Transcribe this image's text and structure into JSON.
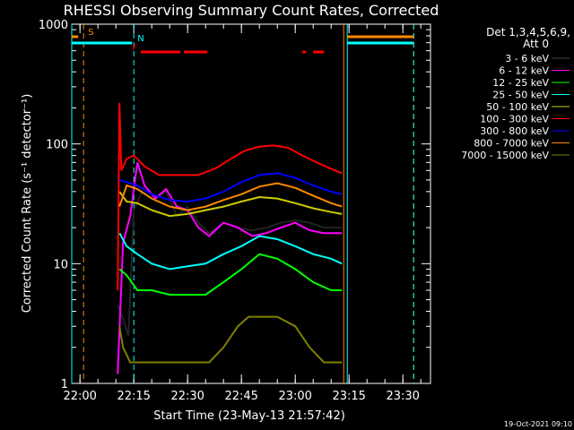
{
  "chart_data": {
    "type": "line",
    "title": "RHESSI Observing Summary Count Rates, Corrected",
    "xlabel": "Start Time (23-May-13 21:57:42)",
    "ylabel": "Corrected Count Rate (s⁻¹ detector⁻¹)",
    "yscale": "log",
    "xlim": [
      "21:57:42",
      "23:37:42"
    ],
    "ylim": [
      1,
      1000
    ],
    "x_ticks": [
      "22:00",
      "22:15",
      "22:30",
      "22:45",
      "23:00",
      "23:15",
      "23:30"
    ],
    "y_ticks": [
      "1",
      "10",
      "100",
      "1000"
    ],
    "legend_header": [
      "Det 1,3,4,5,6,9,",
      "Att 0"
    ],
    "legend_position": "right",
    "timestamp": "19-Oct-2021 09:10",
    "colors": {
      "axes": "#ffffff",
      "saa": "#ff8800",
      "night": "#00ffff",
      "flare": "#ff0000"
    },
    "flag_bars": [
      {
        "label": "S",
        "color": "#ff8800",
        "segments": [
          [
            "21:57:42",
            "21:59:30"
          ],
          [
            "23:14:30",
            "23:33:00"
          ]
        ]
      },
      {
        "label": "N",
        "color": "#00ffff",
        "segments": [
          [
            "21:57:42",
            "22:14:30"
          ],
          [
            "23:14:30",
            "23:33:00"
          ]
        ]
      },
      {
        "label": "F",
        "color": "#ff0000",
        "segments": [
          [
            "22:17:00",
            "22:28:00"
          ],
          [
            "22:29:00",
            "22:35:30"
          ],
          [
            "23:02:00",
            "23:03:00"
          ],
          [
            "23:05:00",
            "23:08:00"
          ]
        ]
      }
    ],
    "vertical_markers": [
      {
        "time": "21:57:42",
        "color": "#00ffff",
        "style": "solid"
      },
      {
        "time": "22:01:00",
        "color": "#ff8800",
        "style": "dashed"
      },
      {
        "time": "22:15:00",
        "color": "#00ffff",
        "style": "dashed"
      },
      {
        "time": "23:13:30",
        "color": "#ff8800",
        "style": "solid"
      },
      {
        "time": "23:14:30",
        "color": "#00ffff",
        "style": "solid"
      },
      {
        "time": "23:33:00",
        "color": "#ff8800",
        "style": "dashed"
      },
      {
        "time": "23:33:00",
        "color": "#00ffff",
        "style": "dashed"
      }
    ],
    "series": [
      {
        "name": "3 - 6 keV",
        "color": "#000000",
        "points": [
          [
            "22:10:30",
            4.5
          ],
          [
            "22:12:00",
            3.5
          ],
          [
            "22:13:30",
            2.5
          ],
          [
            "22:15:00",
            28
          ],
          [
            "22:18:00",
            45
          ],
          [
            "22:21:00",
            35
          ],
          [
            "22:24:00",
            40
          ],
          [
            "22:27:00",
            25
          ],
          [
            "22:30:00",
            30
          ],
          [
            "22:33:00",
            22
          ],
          [
            "22:36:00",
            18
          ],
          [
            "22:40:00",
            22
          ],
          [
            "22:44:00",
            20
          ],
          [
            "22:48:00",
            19
          ],
          [
            "22:52:00",
            20
          ],
          [
            "22:56:00",
            22
          ],
          [
            "23:00:00",
            23
          ],
          [
            "23:04:00",
            22
          ],
          [
            "23:08:00",
            20
          ],
          [
            "23:13:00",
            20
          ]
        ]
      },
      {
        "name": "6 - 12 keV",
        "color": "#ff00ff",
        "points": [
          [
            "22:10:30",
            1.2
          ],
          [
            "22:12:00",
            15
          ],
          [
            "22:14:00",
            25
          ],
          [
            "22:16:00",
            70
          ],
          [
            "22:18:00",
            45
          ],
          [
            "22:21:00",
            35
          ],
          [
            "22:24:00",
            42
          ],
          [
            "22:27:00",
            30
          ],
          [
            "22:30:00",
            28
          ],
          [
            "22:33:00",
            20
          ],
          [
            "22:36:00",
            17
          ],
          [
            "22:40:00",
            22
          ],
          [
            "22:44:00",
            20
          ],
          [
            "22:48:00",
            17
          ],
          [
            "22:52:00",
            18
          ],
          [
            "22:56:00",
            20
          ],
          [
            "23:00:00",
            22
          ],
          [
            "23:04:00",
            19
          ],
          [
            "23:08:00",
            18
          ],
          [
            "23:13:00",
            18
          ]
        ]
      },
      {
        "name": "12 - 25 keV",
        "color": "#00ff00",
        "points": [
          [
            "22:11:00",
            9
          ],
          [
            "22:13:00",
            8
          ],
          [
            "22:16:00",
            6
          ],
          [
            "22:20:00",
            6
          ],
          [
            "22:25:00",
            5.5
          ],
          [
            "22:30:00",
            5.5
          ],
          [
            "22:35:00",
            5.5
          ],
          [
            "22:40:00",
            7
          ],
          [
            "22:45:00",
            9
          ],
          [
            "22:50:00",
            12
          ],
          [
            "22:55:00",
            11
          ],
          [
            "23:00:00",
            9
          ],
          [
            "23:05:00",
            7
          ],
          [
            "23:10:00",
            6
          ],
          [
            "23:13:00",
            6
          ]
        ]
      },
      {
        "name": "25 - 50 keV",
        "color": "#00ffff",
        "points": [
          [
            "22:11:00",
            18
          ],
          [
            "22:13:00",
            14
          ],
          [
            "22:16:00",
            12
          ],
          [
            "22:20:00",
            10
          ],
          [
            "22:25:00",
            9
          ],
          [
            "22:30:00",
            9.5
          ],
          [
            "22:35:00",
            10
          ],
          [
            "22:40:00",
            12
          ],
          [
            "22:45:00",
            14
          ],
          [
            "22:50:00",
            17
          ],
          [
            "22:55:00",
            16
          ],
          [
            "23:00:00",
            14
          ],
          [
            "23:05:00",
            12
          ],
          [
            "23:10:00",
            11
          ],
          [
            "23:13:00",
            10
          ]
        ]
      },
      {
        "name": "50 - 100 keV",
        "color": "#cccc00",
        "points": [
          [
            "22:11:00",
            40
          ],
          [
            "22:13:00",
            33
          ],
          [
            "22:16:00",
            32
          ],
          [
            "22:20:00",
            28
          ],
          [
            "22:25:00",
            25
          ],
          [
            "22:30:00",
            26
          ],
          [
            "22:35:00",
            28
          ],
          [
            "22:40:00",
            30
          ],
          [
            "22:45:00",
            33
          ],
          [
            "22:50:00",
            36
          ],
          [
            "22:55:00",
            35
          ],
          [
            "23:00:00",
            32
          ],
          [
            "23:05:00",
            29
          ],
          [
            "23:10:00",
            27
          ],
          [
            "23:13:00",
            26
          ]
        ]
      },
      {
        "name": "100 - 300 keV",
        "color": "#ff0000",
        "points": [
          [
            "22:10:30",
            6
          ],
          [
            "22:11:00",
            220
          ],
          [
            "22:11:30",
            60
          ],
          [
            "22:13:00",
            75
          ],
          [
            "22:15:00",
            80
          ],
          [
            "22:18:00",
            65
          ],
          [
            "22:22:00",
            55
          ],
          [
            "22:28:00",
            55
          ],
          [
            "22:33:00",
            55
          ],
          [
            "22:38:00",
            63
          ],
          [
            "22:42:00",
            75
          ],
          [
            "22:46:00",
            88
          ],
          [
            "22:50:00",
            95
          ],
          [
            "22:54:00",
            97
          ],
          [
            "22:58:00",
            93
          ],
          [
            "23:02:00",
            80
          ],
          [
            "23:06:00",
            70
          ],
          [
            "23:10:00",
            62
          ],
          [
            "23:13:00",
            57
          ]
        ]
      },
      {
        "name": "300 - 800 keV",
        "color": "#0000ff",
        "points": [
          [
            "22:11:00",
            50
          ],
          [
            "22:13:00",
            48
          ],
          [
            "22:16:00",
            45
          ],
          [
            "22:20:00",
            38
          ],
          [
            "22:25:00",
            34
          ],
          [
            "22:30:00",
            33
          ],
          [
            "22:35:00",
            35
          ],
          [
            "22:40:00",
            40
          ],
          [
            "22:45:00",
            48
          ],
          [
            "22:50:00",
            55
          ],
          [
            "22:55:00",
            57
          ],
          [
            "23:00:00",
            52
          ],
          [
            "23:05:00",
            45
          ],
          [
            "23:10:00",
            40
          ],
          [
            "23:13:00",
            38
          ]
        ]
      },
      {
        "name": "800 - 7000 keV",
        "color": "#ff8800",
        "points": [
          [
            "22:11:00",
            30
          ],
          [
            "22:13:00",
            45
          ],
          [
            "22:16:00",
            42
          ],
          [
            "22:20:00",
            35
          ],
          [
            "22:25:00",
            30
          ],
          [
            "22:30:00",
            28
          ],
          [
            "22:35:00",
            30
          ],
          [
            "22:40:00",
            34
          ],
          [
            "22:45:00",
            38
          ],
          [
            "22:50:00",
            44
          ],
          [
            "22:55:00",
            47
          ],
          [
            "23:00:00",
            43
          ],
          [
            "23:05:00",
            37
          ],
          [
            "23:10:00",
            32
          ],
          [
            "23:13:00",
            30
          ]
        ]
      },
      {
        "name": "7000 - 15000 keV",
        "color": "#808000",
        "points": [
          [
            "22:11:00",
            3
          ],
          [
            "22:12:00",
            2
          ],
          [
            "22:14:00",
            1.5
          ],
          [
            "22:18:00",
            1.5
          ],
          [
            "22:24:00",
            1.5
          ],
          [
            "22:30:00",
            1.5
          ],
          [
            "22:36:00",
            1.5
          ],
          [
            "22:40:00",
            2
          ],
          [
            "22:44:00",
            3
          ],
          [
            "22:47:00",
            3.6
          ],
          [
            "22:55:00",
            3.6
          ],
          [
            "23:00:00",
            3
          ],
          [
            "23:04:00",
            2
          ],
          [
            "23:08:00",
            1.5
          ],
          [
            "23:13:00",
            1.5
          ]
        ]
      }
    ]
  }
}
